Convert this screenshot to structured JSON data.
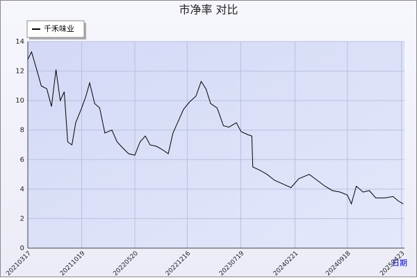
{
  "chart_data": {
    "type": "line",
    "title": "市净率  对比",
    "x_label": "日期",
    "x": [
      "20210317",
      "20210401",
      "20210420",
      "20210510",
      "20210601",
      "20210620",
      "20210708",
      "20210725",
      "20210810",
      "20210824",
      "20210910",
      "20210925",
      "20211019",
      "20211105",
      "20211120",
      "20211210",
      "20211230",
      "20220120",
      "20220217",
      "20220310",
      "20220401",
      "20220425",
      "20220520",
      "20220610",
      "20220701",
      "20220720",
      "20220815",
      "20220905",
      "20221001",
      "20221020",
      "20221110",
      "20221201",
      "20221225",
      "20230120",
      "20230210",
      "20230301",
      "20230320",
      "20230415",
      "20230510",
      "20230601",
      "20230701",
      "20230720",
      "20230815",
      "20230901",
      "20230905",
      "20231001",
      "20231101",
      "20231201",
      "20240110",
      "20240205",
      "20240307",
      "20240418",
      "20240520",
      "20240620",
      "20240720",
      "20240820",
      "20240918",
      "20241004",
      "20241024",
      "20241120",
      "20241215",
      "20250110",
      "20250215",
      "20250320",
      "20250410",
      "20250430"
    ],
    "series": [
      {
        "name": "千禾味业",
        "color": "#000000",
        "values": [
          12.8,
          13.3,
          12.2,
          11.0,
          10.8,
          9.6,
          12.1,
          10.0,
          10.6,
          7.2,
          7.0,
          8.5,
          9.5,
          10.3,
          11.2,
          9.8,
          9.5,
          7.8,
          8.0,
          7.2,
          6.8,
          6.4,
          6.3,
          7.2,
          7.6,
          7.0,
          6.9,
          6.7,
          6.4,
          7.8,
          8.6,
          9.4,
          9.9,
          10.3,
          11.3,
          10.8,
          9.8,
          9.5,
          8.3,
          8.2,
          8.5,
          7.9,
          7.7,
          7.6,
          5.5,
          5.3,
          5.0,
          4.6,
          4.3,
          4.1,
          4.7,
          5.0,
          4.6,
          4.2,
          3.9,
          3.8,
          3.6,
          3.0,
          4.2,
          3.8,
          3.9,
          3.4,
          3.4,
          3.5,
          3.2,
          3.0
        ]
      }
    ],
    "xlim": [
      "20210317",
      "20250505"
    ],
    "xticks": [
      "20210317",
      "20211019",
      "20220520",
      "20221216",
      "20230719",
      "20240221",
      "20240918",
      "20250423"
    ],
    "ylim": [
      0,
      14
    ],
    "yticks": [
      0,
      2,
      4,
      6,
      8,
      10,
      12,
      14
    ],
    "grid": true,
    "legend": "top-left"
  }
}
